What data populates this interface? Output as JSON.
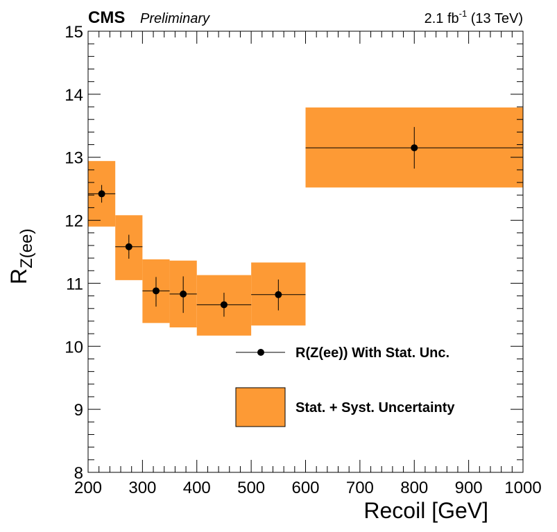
{
  "header": {
    "experiment": "CMS",
    "status": "Preliminary",
    "lumi_main": "2.1 fb",
    "lumi_exp": "-1",
    "lumi_energy": " (13 TeV)"
  },
  "chart_data": {
    "type": "scatter",
    "xlabel": "Recoil [GeV]",
    "ylabel_main": "R",
    "ylabel_sub": "Z(ee)",
    "xlim": [
      200,
      1000
    ],
    "ylim": [
      8,
      15
    ],
    "x_ticks": [
      200,
      300,
      400,
      500,
      600,
      700,
      800,
      900,
      1000
    ],
    "y_ticks": [
      8,
      9,
      10,
      11,
      12,
      13,
      14,
      15
    ],
    "band_color": "#fd9a35",
    "point_color": "#000000",
    "points": [
      {
        "x": 225,
        "x_low": 200,
        "x_high": 250,
        "y": 12.42,
        "stat_down": 0.14,
        "stat_up": 0.14,
        "band_low": 11.9,
        "band_high": 12.94
      },
      {
        "x": 275,
        "x_low": 250,
        "x_high": 300,
        "y": 11.58,
        "stat_down": 0.19,
        "stat_up": 0.19,
        "band_low": 11.05,
        "band_high": 12.08
      },
      {
        "x": 325,
        "x_low": 300,
        "x_high": 350,
        "y": 10.88,
        "stat_down": 0.25,
        "stat_up": 0.22,
        "band_low": 10.37,
        "band_high": 11.38
      },
      {
        "x": 375,
        "x_low": 350,
        "x_high": 400,
        "y": 10.83,
        "stat_down": 0.3,
        "stat_up": 0.28,
        "band_low": 10.3,
        "band_high": 11.36
      },
      {
        "x": 450,
        "x_low": 400,
        "x_high": 500,
        "y": 10.66,
        "stat_down": 0.19,
        "stat_up": 0.19,
        "band_low": 10.17,
        "band_high": 11.13
      },
      {
        "x": 550,
        "x_low": 500,
        "x_high": 600,
        "y": 10.82,
        "stat_down": 0.25,
        "stat_up": 0.24,
        "band_low": 10.33,
        "band_high": 11.33
      },
      {
        "x": 800,
        "x_low": 600,
        "x_high": 1000,
        "y": 13.15,
        "stat_down": 0.33,
        "stat_up": 0.33,
        "band_low": 12.52,
        "band_high": 13.79
      }
    ],
    "legend": [
      {
        "label": "R(Z(ee)) With Stat. Unc.",
        "kind": "marker"
      },
      {
        "label": "Stat. + Syst. Uncertainty",
        "kind": "box"
      }
    ]
  }
}
